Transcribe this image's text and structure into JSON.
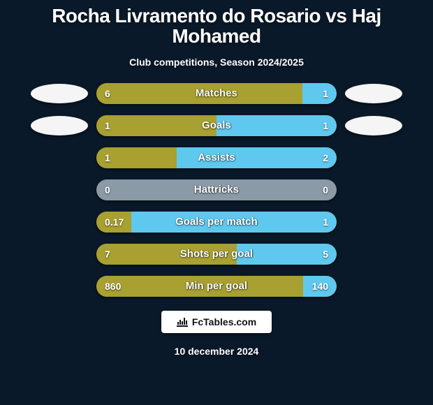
{
  "title": "Rocha Livramento do Rosario vs Haj Mohamed",
  "subtitle": "Club competitions, Season 2024/2025",
  "date": "10 december 2024",
  "brand": "FcTables.com",
  "colors": {
    "left": "#a8a030",
    "right": "#5fc8ee",
    "neutral": "#8a9aa6",
    "background": "#0a1929",
    "avatar": "#f5f5f5"
  },
  "rows": [
    {
      "label": "Matches",
      "left_text": "6",
      "right_text": "1",
      "left_pct": 85.7,
      "right_pct": 14.3,
      "show_avatars": true
    },
    {
      "label": "Goals",
      "left_text": "1",
      "right_text": "1",
      "left_pct": 50,
      "right_pct": 50,
      "show_avatars": true
    },
    {
      "label": "Assists",
      "left_text": "1",
      "right_text": "2",
      "left_pct": 33.3,
      "right_pct": 66.7,
      "show_avatars": false
    },
    {
      "label": "Hattricks",
      "left_text": "0",
      "right_text": "0",
      "left_pct": 0,
      "right_pct": 0,
      "show_avatars": false,
      "neutral": true
    },
    {
      "label": "Goals per match",
      "left_text": "0.17",
      "right_text": "1",
      "left_pct": 14.5,
      "right_pct": 85.5,
      "show_avatars": false
    },
    {
      "label": "Shots per goal",
      "left_text": "7",
      "right_text": "5",
      "left_pct": 58.3,
      "right_pct": 41.7,
      "show_avatars": false
    },
    {
      "label": "Min per goal",
      "left_text": "860",
      "right_text": "140",
      "left_pct": 86,
      "right_pct": 14,
      "show_avatars": false
    }
  ]
}
